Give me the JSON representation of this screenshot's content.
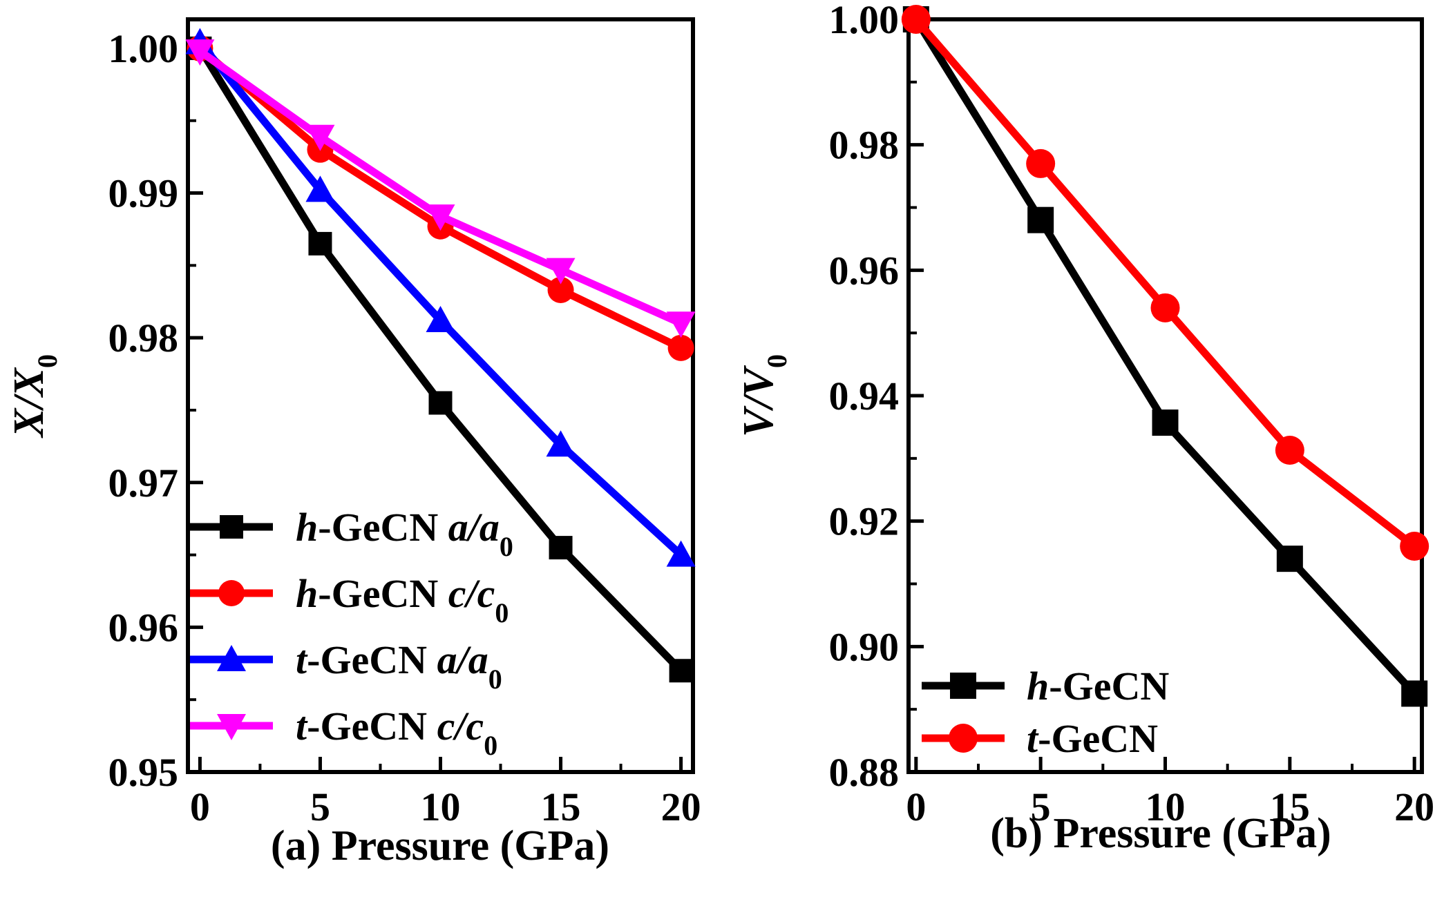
{
  "chart_data": [
    {
      "type": "line",
      "panel_label": "(a)",
      "xlabel": "Pressure (GPa)",
      "ylabel": {
        "main": "X/X",
        "sub": "0"
      },
      "x": [
        0,
        5,
        10,
        15,
        20
      ],
      "xlim": [
        -0.5,
        20.5
      ],
      "ylim": [
        0.95,
        1.002
      ],
      "x_ticks": [
        "0",
        "5",
        "10",
        "15",
        "20"
      ],
      "y_ticks": [
        "0.95",
        "0.96",
        "0.97",
        "0.98",
        "0.99",
        "1.00"
      ],
      "grid": false,
      "legend_position": "bottom-left",
      "series": [
        {
          "name": "h-GeCN a/a0",
          "legend": {
            "prefix": "h",
            "mid": "-GeCN ",
            "var": "a/a",
            "sub": "0"
          },
          "color": "#000000",
          "marker": "square",
          "values": [
            1.0,
            0.9865,
            0.9755,
            0.9655,
            0.957
          ]
        },
        {
          "name": "h-GeCN c/c0",
          "legend": {
            "prefix": "h",
            "mid": "-GeCN ",
            "var": "c/c",
            "sub": "0"
          },
          "color": "#ff0000",
          "marker": "circle",
          "values": [
            1.0,
            0.993,
            0.9877,
            0.9833,
            0.9793
          ]
        },
        {
          "name": "t-GeCN a/a0",
          "legend": {
            "prefix": "t",
            "mid": "-GeCN ",
            "var": "a/a",
            "sub": "0"
          },
          "color": "#0000ff",
          "marker": "triangle-up",
          "values": [
            1.0004,
            0.9902,
            0.9812,
            0.9726,
            0.965
          ]
        },
        {
          "name": "t-GeCN c/c0",
          "legend": {
            "prefix": "t",
            "mid": "-GeCN ",
            "var": "c/c",
            "sub": "0"
          },
          "color": "#ff00ff",
          "marker": "triangle-down",
          "values": [
            0.9998,
            0.9939,
            0.9884,
            0.9847,
            0.981
          ]
        }
      ]
    },
    {
      "type": "line",
      "panel_label": "(b)",
      "xlabel": "Pressure (GPa)",
      "ylabel": {
        "main": "V/V",
        "sub": "0"
      },
      "x": [
        0,
        5,
        10,
        15,
        20
      ],
      "xlim": [
        -0.3,
        20.3
      ],
      "ylim": [
        0.88,
        1.0
      ],
      "x_ticks": [
        "0",
        "5",
        "10",
        "15",
        "20"
      ],
      "y_ticks": [
        "0.88",
        "0.90",
        "0.92",
        "0.94",
        "0.96",
        "0.98",
        "1.00"
      ],
      "grid": false,
      "legend_position": "bottom-left",
      "series": [
        {
          "name": "h-GeCN",
          "legend": {
            "prefix": "h",
            "mid": "-GeCN",
            "var": "",
            "sub": ""
          },
          "color": "#000000",
          "marker": "square",
          "values": [
            1.0,
            0.968,
            0.9357,
            0.914,
            0.8925
          ]
        },
        {
          "name": "t-GeCN",
          "legend": {
            "prefix": "t",
            "mid": "-GeCN",
            "var": "",
            "sub": ""
          },
          "color": "#ff0000",
          "marker": "circle",
          "values": [
            1.0,
            0.977,
            0.954,
            0.9313,
            0.916
          ]
        }
      ]
    }
  ]
}
